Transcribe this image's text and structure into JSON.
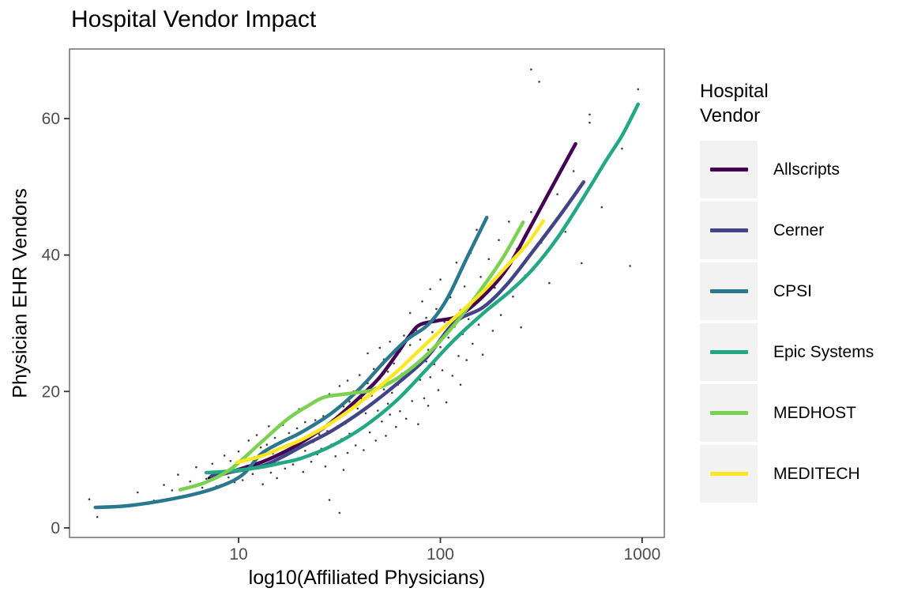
{
  "chart_data": {
    "type": "scatter",
    "title": "Hospital Vendor Impact",
    "xlabel": "log10(Affiliated Physicians)",
    "ylabel": "Physician EHR Vendors",
    "legend_title": "Hospital\nVendor",
    "legend_position": "right",
    "grid": false,
    "x_scale": "log10",
    "x_ticks": [
      10,
      100,
      1000
    ],
    "y_ticks": [
      0,
      20,
      40,
      60
    ],
    "x_domain_log10": [
      0.162,
      3.11
    ],
    "y_domain": [
      -1.4,
      70.2
    ],
    "colors": {
      "panel_border": "#595959",
      "tick_mark": "#333333",
      "tick_label": "#4d4d4d",
      "point": "#1a1a1a",
      "legend_key_fill": "#f2f2f2"
    },
    "series": [
      {
        "name": "Allscripts",
        "color": "#440154",
        "points": [
          [
            0.855,
            7.3
          ],
          [
            0.96,
            8.2
          ],
          [
            1.11,
            9.6
          ],
          [
            1.21,
            10.9
          ],
          [
            1.31,
            12.5
          ],
          [
            1.46,
            15.5
          ],
          [
            1.62,
            19.7
          ],
          [
            1.7,
            22.1
          ],
          [
            1.78,
            25.3
          ],
          [
            1.85,
            28.3
          ],
          [
            1.9,
            29.8
          ],
          [
            1.99,
            30.4
          ],
          [
            2.09,
            31.1
          ],
          [
            2.21,
            33.9
          ],
          [
            2.33,
            38.0
          ],
          [
            2.44,
            43.8
          ],
          [
            2.55,
            49.8
          ],
          [
            2.67,
            56.3
          ]
        ]
      },
      {
        "name": "Cerner",
        "color": "#414487",
        "points": [
          [
            0.865,
            7.6
          ],
          [
            0.98,
            8.3
          ],
          [
            1.11,
            9.0
          ],
          [
            1.21,
            10.3
          ],
          [
            1.31,
            11.9
          ],
          [
            1.46,
            14.2
          ],
          [
            1.62,
            17.3
          ],
          [
            1.78,
            21.0
          ],
          [
            1.93,
            24.9
          ],
          [
            2.07,
            30.1
          ],
          [
            2.21,
            32.3
          ],
          [
            2.33,
            35.7
          ],
          [
            2.46,
            40.6
          ],
          [
            2.6,
            46.1
          ],
          [
            2.71,
            50.7
          ]
        ]
      },
      {
        "name": "CPSI",
        "color": "#2a788e",
        "points": [
          [
            0.29,
            3.0
          ],
          [
            0.47,
            3.3
          ],
          [
            0.73,
            4.6
          ],
          [
            0.9,
            6.0
          ],
          [
            1.02,
            7.8
          ],
          [
            1.11,
            10.8
          ],
          [
            1.2,
            12.4
          ],
          [
            1.31,
            14.0
          ],
          [
            1.46,
            16.8
          ],
          [
            1.6,
            20.4
          ],
          [
            1.72,
            24.3
          ],
          [
            1.83,
            27.5
          ],
          [
            1.94,
            29.8
          ],
          [
            2.03,
            33.4
          ],
          [
            2.13,
            39.5
          ],
          [
            2.23,
            45.5
          ]
        ]
      },
      {
        "name": "Epic Systems",
        "color": "#22a884",
        "points": [
          [
            0.84,
            8.1
          ],
          [
            0.95,
            8.3
          ],
          [
            1.11,
            8.9
          ],
          [
            1.21,
            9.5
          ],
          [
            1.31,
            10.2
          ],
          [
            1.46,
            12.0
          ],
          [
            1.62,
            14.8
          ],
          [
            1.78,
            18.6
          ],
          [
            1.93,
            23.2
          ],
          [
            2.07,
            27.6
          ],
          [
            2.21,
            31.4
          ],
          [
            2.35,
            34.8
          ],
          [
            2.46,
            38.0
          ],
          [
            2.58,
            42.5
          ],
          [
            2.7,
            48.0
          ],
          [
            2.82,
            53.8
          ],
          [
            2.9,
            57.5
          ],
          [
            2.98,
            62.1
          ]
        ]
      },
      {
        "name": "MEDHOST",
        "color": "#7ad151",
        "points": [
          [
            0.71,
            5.6
          ],
          [
            0.83,
            6.6
          ],
          [
            0.96,
            8.6
          ],
          [
            1.11,
            12.5
          ],
          [
            1.24,
            15.9
          ],
          [
            1.35,
            18.0
          ],
          [
            1.43,
            19.2
          ],
          [
            1.55,
            19.7
          ],
          [
            1.66,
            20.2
          ],
          [
            1.78,
            21.8
          ],
          [
            1.93,
            25.3
          ],
          [
            2.07,
            29.8
          ],
          [
            2.21,
            35.3
          ],
          [
            2.31,
            39.6
          ],
          [
            2.41,
            44.8
          ]
        ]
      },
      {
        "name": "MEDITECH",
        "color": "#fde725",
        "points": [
          [
            0.99,
            9.6
          ],
          [
            1.11,
            10.5
          ],
          [
            1.21,
            11.7
          ],
          [
            1.31,
            12.9
          ],
          [
            1.46,
            15.4
          ],
          [
            1.62,
            18.8
          ],
          [
            1.78,
            22.8
          ],
          [
            1.93,
            27.0
          ],
          [
            2.07,
            30.8
          ],
          [
            2.21,
            34.6
          ],
          [
            2.33,
            38.4
          ],
          [
            2.43,
            41.6
          ],
          [
            2.51,
            45.0
          ]
        ]
      }
    ],
    "scatter_points": [
      [
        0.26,
        4.2
      ],
      [
        0.3,
        1.6
      ],
      [
        0.42,
        3.1
      ],
      [
        0.5,
        5.2
      ],
      [
        0.58,
        4.0
      ],
      [
        0.63,
        6.3
      ],
      [
        0.67,
        5.5
      ],
      [
        0.7,
        7.8
      ],
      [
        0.73,
        4.6
      ],
      [
        0.76,
        6.8
      ],
      [
        0.79,
        8.9
      ],
      [
        0.82,
        5.9
      ],
      [
        0.84,
        7.2
      ],
      [
        0.87,
        9.4
      ],
      [
        0.89,
        6.1
      ],
      [
        0.91,
        8.0
      ],
      [
        0.93,
        10.6
      ],
      [
        0.95,
        7.4
      ],
      [
        0.96,
        9.8
      ],
      [
        0.98,
        6.7
      ],
      [
        1.0,
        8.4
      ],
      [
        1.0,
        11.2
      ],
      [
        1.02,
        7.0
      ],
      [
        1.04,
        9.1
      ],
      [
        1.05,
        12.8
      ],
      [
        1.07,
        7.9
      ],
      [
        1.08,
        10.4
      ],
      [
        1.09,
        13.6
      ],
      [
        1.1,
        8.8
      ],
      [
        1.11,
        11.8
      ],
      [
        1.12,
        6.4
      ],
      [
        1.13,
        9.9
      ],
      [
        1.14,
        12.2
      ],
      [
        1.15,
        14.9
      ],
      [
        1.16,
        8.1
      ],
      [
        1.17,
        10.9
      ],
      [
        1.18,
        13.2
      ],
      [
        1.19,
        7.3
      ],
      [
        1.2,
        9.6
      ],
      [
        1.21,
        12.4
      ],
      [
        1.22,
        15.1
      ],
      [
        1.23,
        8.7
      ],
      [
        1.24,
        11.1
      ],
      [
        1.25,
        13.9
      ],
      [
        1.26,
        16.3
      ],
      [
        1.27,
        9.3
      ],
      [
        1.28,
        12.0
      ],
      [
        1.29,
        14.6
      ],
      [
        1.3,
        10.2
      ],
      [
        1.3,
        17.4
      ],
      [
        1.31,
        12.9
      ],
      [
        1.32,
        8.2
      ],
      [
        1.33,
        15.5
      ],
      [
        1.33,
        11.3
      ],
      [
        1.34,
        13.4
      ],
      [
        1.35,
        18.1
      ],
      [
        1.36,
        9.7
      ],
      [
        1.37,
        12.6
      ],
      [
        1.38,
        15.8
      ],
      [
        1.39,
        10.8
      ],
      [
        1.4,
        13.7
      ],
      [
        1.4,
        18.9
      ],
      [
        1.41,
        11.6
      ],
      [
        1.42,
        16.4
      ],
      [
        1.43,
        9.0
      ],
      [
        1.44,
        14.2
      ],
      [
        1.45,
        19.6
      ],
      [
        1.45,
        4.1
      ],
      [
        1.46,
        12.2
      ],
      [
        1.47,
        17.0
      ],
      [
        1.48,
        10.5
      ],
      [
        1.49,
        14.9
      ],
      [
        1.5,
        20.8
      ],
      [
        1.5,
        2.2
      ],
      [
        1.51,
        13.0
      ],
      [
        1.52,
        17.8
      ],
      [
        1.52,
        8.5
      ],
      [
        1.53,
        15.3
      ],
      [
        1.54,
        21.6
      ],
      [
        1.54,
        11.0
      ],
      [
        1.55,
        18.5
      ],
      [
        1.55,
        13.8
      ],
      [
        1.56,
        16.1
      ],
      [
        1.57,
        20.0
      ],
      [
        1.58,
        12.1
      ],
      [
        1.59,
        17.5
      ],
      [
        1.6,
        22.4
      ],
      [
        1.6,
        14.5
      ],
      [
        1.61,
        18.9
      ],
      [
        1.62,
        11.4
      ],
      [
        1.63,
        16.8
      ],
      [
        1.64,
        21.2
      ],
      [
        1.64,
        25.6
      ],
      [
        1.65,
        14.0
      ],
      [
        1.66,
        19.4
      ],
      [
        1.67,
        23.3
      ],
      [
        1.68,
        12.8
      ],
      [
        1.69,
        17.2
      ],
      [
        1.7,
        21.9
      ],
      [
        1.7,
        26.4
      ],
      [
        1.71,
        15.6
      ],
      [
        1.72,
        20.3
      ],
      [
        1.72,
        24.7
      ],
      [
        1.73,
        13.5
      ],
      [
        1.74,
        18.2
      ],
      [
        1.74,
        22.9
      ],
      [
        1.75,
        16.6
      ],
      [
        1.75,
        27.3
      ],
      [
        1.76,
        19.8
      ],
      [
        1.77,
        24.1
      ],
      [
        1.78,
        14.8
      ],
      [
        1.79,
        21.0
      ],
      [
        1.8,
        25.9
      ],
      [
        1.8,
        17.1
      ],
      [
        1.81,
        22.6
      ],
      [
        1.82,
        28.2
      ],
      [
        1.83,
        16.0
      ],
      [
        1.84,
        20.5
      ],
      [
        1.85,
        26.8
      ],
      [
        1.85,
        31.5
      ],
      [
        1.86,
        18.6
      ],
      [
        1.87,
        23.8
      ],
      [
        1.88,
        29.0
      ],
      [
        1.89,
        15.2
      ],
      [
        1.9,
        21.7
      ],
      [
        1.9,
        27.6
      ],
      [
        1.91,
        33.2
      ],
      [
        1.92,
        19.0
      ],
      [
        1.93,
        24.4
      ],
      [
        1.93,
        30.8
      ],
      [
        1.94,
        17.9
      ],
      [
        1.94,
        26.1
      ],
      [
        1.95,
        22.1
      ],
      [
        1.95,
        35.0
      ],
      [
        1.96,
        28.7
      ],
      [
        1.97,
        24.0
      ],
      [
        1.98,
        32.1
      ],
      [
        1.99,
        20.2
      ],
      [
        2.0,
        26.5
      ],
      [
        2.0,
        36.4
      ],
      [
        2.01,
        23.1
      ],
      [
        2.02,
        30.2
      ],
      [
        2.03,
        18.4
      ],
      [
        2.04,
        27.9
      ],
      [
        2.05,
        33.8
      ],
      [
        2.06,
        22.3
      ],
      [
        2.07,
        29.5
      ],
      [
        2.08,
        38.9
      ],
      [
        2.09,
        25.2
      ],
      [
        2.1,
        31.9
      ],
      [
        2.1,
        21.0
      ],
      [
        2.11,
        28.4
      ],
      [
        2.12,
        35.4
      ],
      [
        2.13,
        24.6
      ],
      [
        2.14,
        30.6
      ],
      [
        2.15,
        40.3
      ],
      [
        2.16,
        27.0
      ],
      [
        2.17,
        33.0
      ],
      [
        2.18,
        43.7
      ],
      [
        2.19,
        29.8
      ],
      [
        2.2,
        36.8
      ],
      [
        2.21,
        25.4
      ],
      [
        2.23,
        32.6
      ],
      [
        2.24,
        39.4
      ],
      [
        2.26,
        28.9
      ],
      [
        2.27,
        35.2
      ],
      [
        2.29,
        42.2
      ],
      [
        2.3,
        31.2
      ],
      [
        2.32,
        37.6
      ],
      [
        2.34,
        44.9
      ],
      [
        2.36,
        33.9
      ],
      [
        2.38,
        40.9
      ],
      [
        2.4,
        29.4
      ],
      [
        2.42,
        37.0
      ],
      [
        2.45,
        67.2
      ],
      [
        2.45,
        46.3
      ],
      [
        2.49,
        65.4
      ],
      [
        2.5,
        41.8
      ],
      [
        2.54,
        35.9
      ],
      [
        2.58,
        48.9
      ],
      [
        2.62,
        43.4
      ],
      [
        2.66,
        52.3
      ],
      [
        2.7,
        38.8
      ],
      [
        2.74,
        60.6
      ],
      [
        2.74,
        59.4
      ],
      [
        2.8,
        47.0
      ],
      [
        2.9,
        55.6
      ],
      [
        2.94,
        38.4
      ],
      [
        2.98,
        64.3
      ]
    ]
  }
}
